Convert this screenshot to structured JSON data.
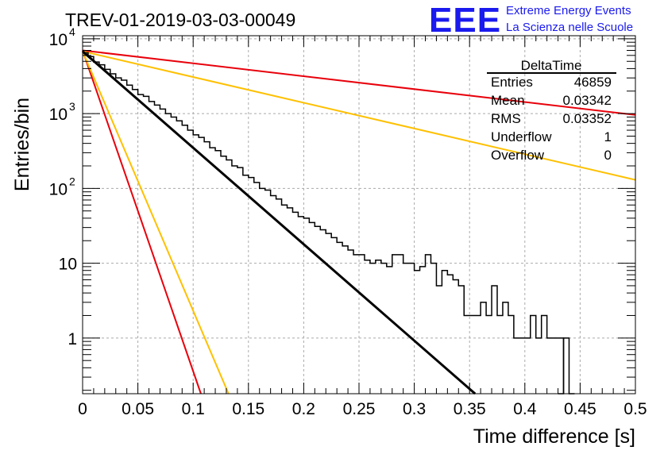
{
  "header": {
    "run_title": "TREV-01-2019-03-03-00049",
    "logo_text": "EEE",
    "logo_line1": "Extreme Energy Events",
    "logo_line2": "La Scienza nelle Scuole"
  },
  "stats_box": {
    "title": "DeltaTime",
    "rows": [
      {
        "label": "Entries",
        "value": "46859"
      },
      {
        "label": "Mean",
        "value": "0.03342"
      },
      {
        "label": "RMS",
        "value": "0.03352"
      },
      {
        "label": "Underflow",
        "value": "1"
      },
      {
        "label": "Overflow",
        "value": "0"
      }
    ]
  },
  "colors": {
    "histogram": "#000000",
    "fit": "#000000",
    "red_curves": "#e8000b",
    "orange_curves": "#ffc000",
    "grid": "#aaaaaa",
    "logo": "#1a1aee"
  },
  "chart_data": {
    "type": "line",
    "log_y": true,
    "grid": true,
    "xlabel": "Time difference [s]",
    "ylabel": "Entries/bin",
    "xlim": [
      0,
      0.5
    ],
    "ylim": [
      0.18,
      11000
    ],
    "x_ticks": [
      "0",
      "0.05",
      "0.1",
      "0.15",
      "0.2",
      "0.25",
      "0.3",
      "0.35",
      "0.4",
      "0.45",
      "0.5"
    ],
    "y_ticks": [
      {
        "value": 1,
        "label": "1"
      },
      {
        "value": 10,
        "label": "10"
      },
      {
        "value": 100,
        "label": "10",
        "exp": "2"
      },
      {
        "value": 1000,
        "label": "10",
        "exp": "3"
      },
      {
        "value": 10000,
        "label": "10",
        "exp": "4"
      }
    ],
    "histogram": {
      "bin_width": 0.005,
      "counts": [
        6500,
        5800,
        4900,
        4500,
        3900,
        3400,
        3000,
        2800,
        2400,
        2100,
        1800,
        1700,
        1450,
        1300,
        1150,
        1000,
        900,
        800,
        700,
        600,
        520,
        480,
        420,
        350,
        320,
        270,
        240,
        200,
        190,
        150,
        140,
        120,
        100,
        95,
        80,
        72,
        60,
        55,
        48,
        42,
        40,
        35,
        31,
        28,
        25,
        22,
        19,
        17,
        15,
        13,
        13,
        11,
        10,
        11,
        10,
        9,
        13,
        13,
        10,
        10,
        8,
        9,
        13,
        10,
        5,
        8,
        7,
        6,
        5,
        2,
        2,
        2,
        3,
        2,
        5,
        2,
        3,
        2,
        1,
        1,
        1,
        2,
        1,
        2,
        1,
        1,
        1
      ],
      "tail": [
        {
          "x": 0.43,
          "count": 0.18
        },
        {
          "x": 0.435,
          "count": 1
        },
        {
          "x": 0.44,
          "count": 0.18
        }
      ]
    },
    "fit_line": {
      "x": [
        0,
        0.355
      ],
      "y": [
        6800,
        0.18
      ]
    },
    "red_lines": [
      {
        "x": [
          0,
          0.5
        ],
        "y": [
          7000,
          960
        ]
      },
      {
        "x": [
          0,
          0.107
        ],
        "y": [
          7000,
          0.18
        ]
      }
    ],
    "orange_lines": [
      {
        "x": [
          0,
          0.5
        ],
        "y": [
          6800,
          130
        ]
      },
      {
        "x": [
          0,
          0.132
        ],
        "y": [
          6800,
          0.18
        ]
      }
    ]
  }
}
